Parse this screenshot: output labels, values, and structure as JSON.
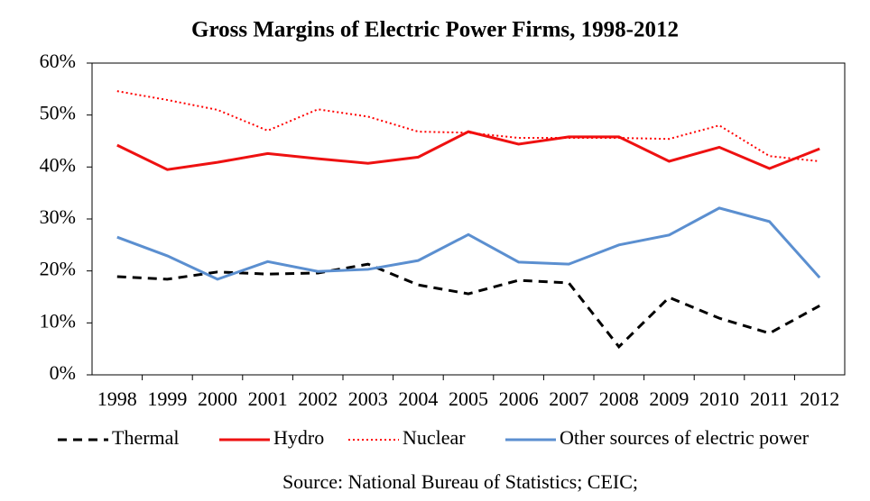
{
  "chart_data": {
    "type": "line",
    "title": "Gross Margins of Electric Power Firms, 1998-2012",
    "source": "Source: National Bureau of Statistics;  CEIC;",
    "categories": [
      "1998",
      "1999",
      "2000",
      "2001",
      "2002",
      "2003",
      "2004",
      "2005",
      "2006",
      "2007",
      "2008",
      "2009",
      "2010",
      "2011",
      "2012"
    ],
    "series": [
      {
        "name": "Thermal",
        "color": "#000000",
        "dash": "dashed",
        "values": [
          18.9,
          18.4,
          19.8,
          19.4,
          19.6,
          21.3,
          17.3,
          15.6,
          18.2,
          17.7,
          5.4,
          14.9,
          10.9,
          8.0,
          13.3
        ]
      },
      {
        "name": "Hydro",
        "color": "#ee1111",
        "dash": "solid",
        "values": [
          44.2,
          39.5,
          40.9,
          42.6,
          41.6,
          40.7,
          41.9,
          46.8,
          44.4,
          45.8,
          45.8,
          41.1,
          43.8,
          39.7,
          43.5
        ]
      },
      {
        "name": "Nuclear",
        "color": "#ff0000",
        "dash": "dotted",
        "values": [
          54.6,
          52.9,
          51.0,
          47.0,
          51.1,
          49.7,
          46.8,
          46.6,
          45.6,
          45.6,
          45.6,
          45.4,
          48.0,
          42.1,
          41.1
        ]
      },
      {
        "name": "Other sources of electric power",
        "color": "#5b8fd0",
        "dash": "solid",
        "values": [
          26.5,
          22.9,
          18.4,
          21.8,
          19.9,
          20.3,
          22.0,
          27.0,
          21.7,
          21.3,
          25.0,
          26.9,
          32.1,
          29.5,
          18.7
        ]
      }
    ],
    "ylim": [
      0,
      60
    ],
    "yticks": [
      {
        "value": 0,
        "label": "0%"
      },
      {
        "value": 10,
        "label": "10%"
      },
      {
        "value": 20,
        "label": "20%"
      },
      {
        "value": 30,
        "label": "30%"
      },
      {
        "value": 40,
        "label": "40%"
      },
      {
        "value": 50,
        "label": "50%"
      },
      {
        "value": 60,
        "label": "60%"
      }
    ],
    "grid": false,
    "legend": "bottom"
  }
}
